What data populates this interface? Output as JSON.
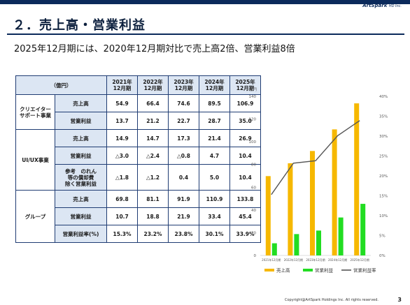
{
  "header": {
    "logo_main": "ArtSpark",
    "logo_sub": "HD Inc.",
    "title": "２．売上高・営業利益",
    "subtitle": "2025年12月期には、2020年12月期対比で売上高2倍、営業利益8倍"
  },
  "table": {
    "unit": "（億円）",
    "years": [
      "2021年\n12月期",
      "2022年\n12月期",
      "2023年\n12月期",
      "2024年\n12月期",
      "2025年\n12月期"
    ],
    "groups": [
      {
        "name": "クリエイター\nサポート事業",
        "rows": [
          {
            "label": "売上高",
            "values": [
              "54.9",
              "66.4",
              "74.6",
              "89.5",
              "106.9"
            ]
          },
          {
            "label": "営業利益",
            "values": [
              "13.7",
              "21.2",
              "22.7",
              "28.7",
              "35.0"
            ]
          }
        ]
      },
      {
        "name": "UI/UX事業",
        "rows": [
          {
            "label": "売上高",
            "values": [
              "14.9",
              "14.7",
              "17.3",
              "21.4",
              "26.9"
            ]
          },
          {
            "label": "営業利益",
            "values": [
              "△3.0",
              "△2.4",
              "△0.8",
              "4.7",
              "10.4"
            ]
          },
          {
            "label": "参考　のれん\n等の償却費\n除く営業利益",
            "values": [
              "△1.8",
              "△1.2",
              "0.4",
              "5.0",
              "10.4"
            ]
          }
        ]
      },
      {
        "name": "グループ",
        "rows": [
          {
            "label": "売上高",
            "values": [
              "69.8",
              "81.1",
              "91.9",
              "110.9",
              "133.8"
            ]
          },
          {
            "label": "営業利益",
            "values": [
              "10.7",
              "18.8",
              "21.9",
              "33.4",
              "45.4"
            ]
          },
          {
            "label": "営業利益率(%)",
            "values": [
              "15.3%",
              "23.2%",
              "23.8%",
              "30.1%",
              "33.9%"
            ]
          }
        ]
      }
    ]
  },
  "chart_data": {
    "type": "bar",
    "unit_label": "億円",
    "categories": [
      "2021年12月期",
      "2022年12月期",
      "2023年12月期",
      "2024年12月期",
      "2025年12月期"
    ],
    "series": [
      {
        "name": "売上高",
        "kind": "bar",
        "axis": "left",
        "color": "#f6b800",
        "values": [
          69.8,
          81.1,
          91.9,
          110.9,
          133.8
        ]
      },
      {
        "name": "営業利益",
        "kind": "bar",
        "axis": "left",
        "color": "#22dd22",
        "values": [
          10.7,
          18.8,
          21.9,
          33.4,
          45.4
        ]
      },
      {
        "name": "営業利益率",
        "kind": "line",
        "axis": "right",
        "color": "#555555",
        "values": [
          15.3,
          23.2,
          23.8,
          30.1,
          33.9
        ]
      }
    ],
    "ylim": [
      0,
      140
    ],
    "yticks": [
      0,
      20,
      40,
      60,
      80,
      100,
      120,
      140
    ],
    "y2lim": [
      0,
      40
    ],
    "y2ticks": [
      "0%",
      "5%",
      "10%",
      "15%",
      "20%",
      "25%",
      "30%",
      "35%",
      "40%"
    ],
    "grid": false,
    "legend_position": "bottom"
  },
  "footer": {
    "copyright": "Copyright@ArtSpark Holdings Inc. All rights reserved.",
    "page": "3"
  }
}
